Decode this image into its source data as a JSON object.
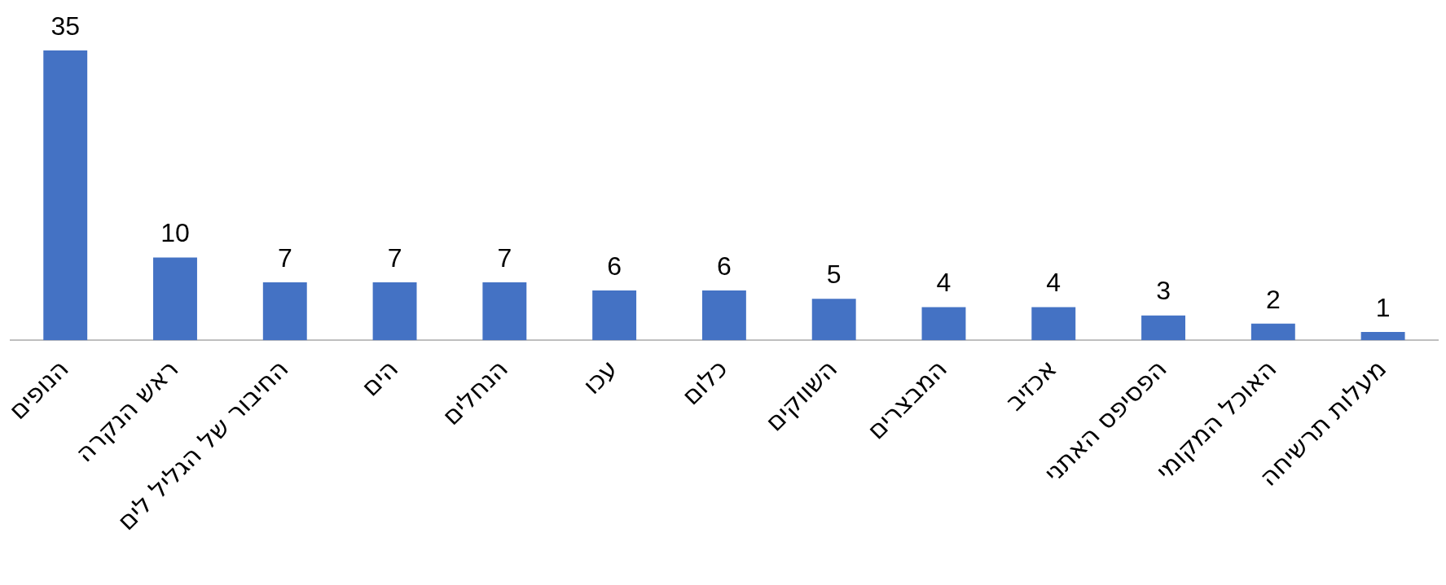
{
  "chart_data": {
    "type": "bar",
    "categories": [
      "הנופים",
      "ראש הנקרה",
      "החיבור של הגליל לים",
      "הים",
      "הנחלים",
      "עכו",
      "כלום",
      "השווקים",
      "המבצרים",
      "אכזיב",
      "הפסיפס האתני",
      "האוכל המקומי",
      "מעלות תרשיחה"
    ],
    "values": [
      35,
      10,
      7,
      7,
      7,
      6,
      6,
      5,
      4,
      4,
      3,
      2,
      1
    ],
    "color": "#4472c4",
    "ylim": [
      0,
      35
    ],
    "data_labels": true,
    "grid": false,
    "tick_labels": "x"
  }
}
